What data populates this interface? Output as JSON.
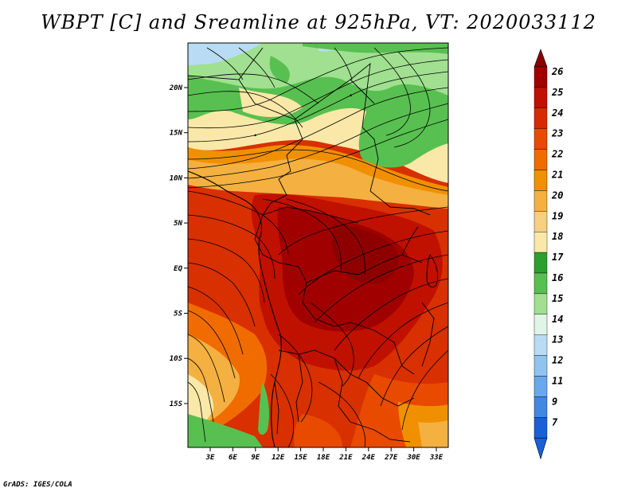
{
  "title": "WBPT [C] and Sreamline at 925hPa, VT: 2020033112",
  "footer": "GrADS: IGES/COLA",
  "map": {
    "lat_labels": [
      "20N",
      "15N",
      "10N",
      "5N",
      "EQ",
      "5S",
      "10S",
      "15S"
    ],
    "lon_labels": [
      "3E",
      "6E",
      "9E",
      "12E",
      "15E",
      "18E",
      "21E",
      "24E",
      "27E",
      "30E",
      "33E"
    ]
  },
  "colorbar": {
    "labels": [
      "26",
      "25",
      "24",
      "23",
      "22",
      "21",
      "20",
      "19",
      "18",
      "17",
      "16",
      "15",
      "14",
      "13",
      "12",
      "11",
      "9",
      "7"
    ],
    "colors": [
      "#a00000",
      "#c01000",
      "#d82a00",
      "#e84a00",
      "#f06c00",
      "#f09000",
      "#f4b040",
      "#f6d080",
      "#fae8a8",
      "#2ca02c",
      "#58c050",
      "#a0e090",
      "#e0f4e8",
      "#b8dcf4",
      "#90c4f0",
      "#68a8ec",
      "#4088e4",
      "#1860d8"
    ],
    "upper_arrow_color": "#8a0000",
    "lower_arrow_color": "#1860d8"
  }
}
